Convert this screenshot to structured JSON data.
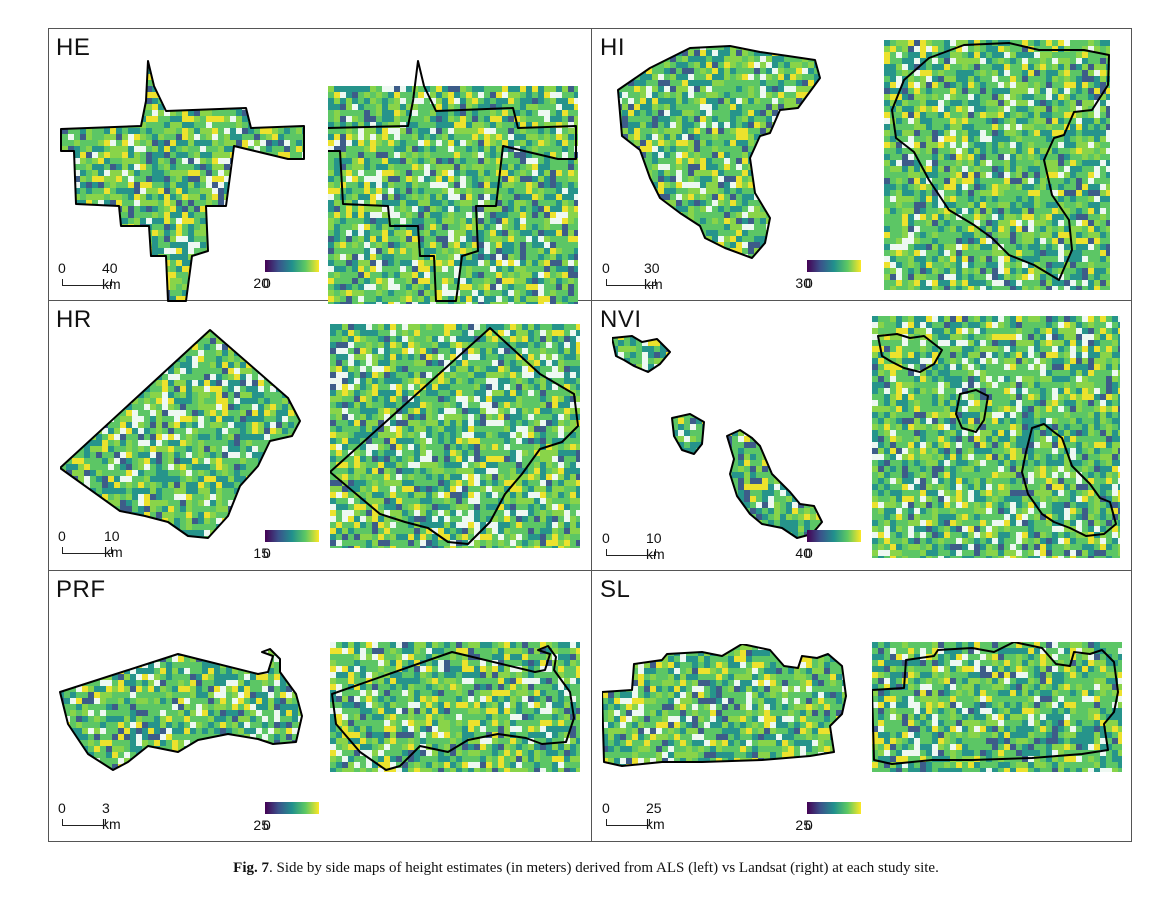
{
  "figure": {
    "caption_label": "Fig. 7",
    "caption_text": ". Side by side maps of height estimates (in meters) derived from ALS (left) vs Landsat (right) at each study site."
  },
  "colormap": [
    "#440154",
    "#3b528b",
    "#21908d",
    "#5dc863",
    "#fde725"
  ],
  "panels": [
    {
      "id": "HE",
      "label": "HE",
      "scale_zero": "0",
      "scale_dist": "40 km",
      "legend_min": "0",
      "legend_max": "20"
    },
    {
      "id": "HI",
      "label": "HI",
      "scale_zero": "0",
      "scale_dist": "30 km",
      "legend_min": "0",
      "legend_max": "30"
    },
    {
      "id": "HR",
      "label": "HR",
      "scale_zero": "0",
      "scale_dist": "10 km",
      "legend_min": "0",
      "legend_max": "15"
    },
    {
      "id": "NVI",
      "label": "NVI",
      "scale_zero": "0",
      "scale_dist": "10 km",
      "legend_min": "0",
      "legend_max": "40"
    },
    {
      "id": "PRF",
      "label": "PRF",
      "scale_zero": "0",
      "scale_dist": "3 km",
      "legend_min": "0",
      "legend_max": "25"
    },
    {
      "id": "SL",
      "label": "SL",
      "scale_zero": "0",
      "scale_dist": "25 km",
      "legend_min": "0",
      "legend_max": "25"
    }
  ]
}
